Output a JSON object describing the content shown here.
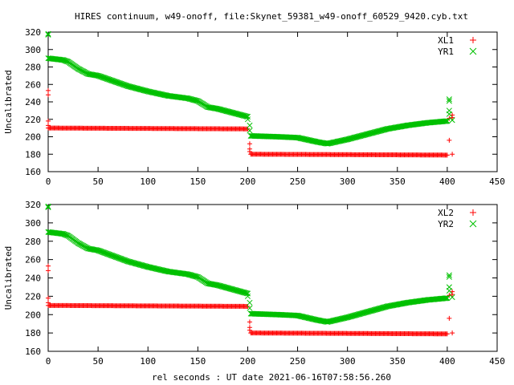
{
  "title": "HIRES continuum, w49-onoff, file:Skynet_59381_w49-onoff_60529_9420.cyb.txt",
  "xlabel": "rel seconds : UT date 2021-06-16T07:58:56.260",
  "colors": {
    "red_series": "#ff0000",
    "green_series": "#00c000"
  },
  "chart_data": [
    {
      "type": "scatter",
      "title": "HIRES continuum, w49-onoff, file:Skynet_59381_w49-onoff_60529_9420.cyb.txt",
      "xlabel": "",
      "ylabel": "Uncalibrated",
      "xlim": [
        0,
        450
      ],
      "ylim": [
        160,
        320
      ],
      "xticks": [
        0,
        50,
        100,
        150,
        200,
        250,
        300,
        350,
        400,
        450
      ],
      "yticks": [
        160,
        180,
        200,
        220,
        240,
        260,
        280,
        300,
        320
      ],
      "grid": false,
      "legend": "top-right",
      "series": [
        {
          "name": "XL1",
          "marker": "plus",
          "color": "#ff0000",
          "segments": [
            {
              "x_start": 0,
              "x_end": 200,
              "y_points": [
                [
                  0,
                  210
                ],
                [
                  200,
                  209
                ]
              ]
            },
            {
              "x_start": 203,
              "x_end": 400,
              "y_points": [
                [
                  203,
                  180
                ],
                [
                  400,
                  179
                ]
              ]
            }
          ],
          "extra_points": [
            [
              0,
              253
            ],
            [
              0,
              248
            ],
            [
              0,
              218
            ],
            [
              0,
              213
            ],
            [
              202,
              192
            ],
            [
              202,
              186
            ],
            [
              202,
              183
            ],
            [
              402,
              221
            ],
            [
              402,
              196
            ],
            [
              405,
              180
            ],
            [
              405,
              225
            ],
            [
              405,
              222
            ]
          ]
        },
        {
          "name": "YR1",
          "marker": "x",
          "color": "#00c000",
          "segments": [
            {
              "x_start": 0,
              "x_end": 200,
              "y_points": [
                [
                  0,
                  290
                ],
                [
                  15,
                  288
                ],
                [
                  20,
                  286
                ],
                [
                  30,
                  278
                ],
                [
                  40,
                  272
                ],
                [
                  50,
                  270
                ],
                [
                  60,
                  266
                ],
                [
                  80,
                  258
                ],
                [
                  100,
                  252
                ],
                [
                  120,
                  247
                ],
                [
                  140,
                  244
                ],
                [
                  150,
                  241
                ],
                [
                  160,
                  234
                ],
                [
                  170,
                  232
                ],
                [
                  180,
                  229
                ],
                [
                  200,
                  223
                ]
              ]
            },
            {
              "x_start": 203,
              "x_end": 400,
              "y_points": [
                [
                  203,
                  201
                ],
                [
                  230,
                  200
                ],
                [
                  250,
                  199
                ],
                [
                  270,
                  194
                ],
                [
                  280,
                  192
                ],
                [
                  300,
                  197
                ],
                [
                  320,
                  203
                ],
                [
                  340,
                  209
                ],
                [
                  360,
                  213
                ],
                [
                  380,
                  216
                ],
                [
                  400,
                  218
                ]
              ]
            }
          ],
          "extra_points": [
            [
              0,
              318
            ],
            [
              0,
              317
            ],
            [
              200,
              220
            ],
            [
              202,
              213
            ],
            [
              202,
              207
            ],
            [
              402,
              243
            ],
            [
              402,
              241
            ],
            [
              402,
              230
            ],
            [
              402,
              226
            ],
            [
              405,
              219
            ]
          ]
        }
      ]
    },
    {
      "type": "scatter",
      "title": "",
      "xlabel": "rel seconds : UT date 2021-06-16T07:58:56.260",
      "ylabel": "Uncalibrated",
      "xlim": [
        0,
        450
      ],
      "ylim": [
        160,
        320
      ],
      "xticks": [
        0,
        50,
        100,
        150,
        200,
        250,
        300,
        350,
        400,
        450
      ],
      "yticks": [
        160,
        180,
        200,
        220,
        240,
        260,
        280,
        300,
        320
      ],
      "grid": false,
      "legend": "top-right",
      "series": [
        {
          "name": "XL2",
          "marker": "plus",
          "color": "#ff0000",
          "segments": [
            {
              "x_start": 0,
              "x_end": 200,
              "y_points": [
                [
                  0,
                  210
                ],
                [
                  200,
                  209
                ]
              ]
            },
            {
              "x_start": 203,
              "x_end": 400,
              "y_points": [
                [
                  203,
                  180
                ],
                [
                  400,
                  179
                ]
              ]
            }
          ],
          "extra_points": [
            [
              0,
              253
            ],
            [
              0,
              248
            ],
            [
              0,
              218
            ],
            [
              0,
              213
            ],
            [
              202,
              192
            ],
            [
              202,
              186
            ],
            [
              202,
              183
            ],
            [
              402,
              221
            ],
            [
              402,
              196
            ],
            [
              405,
              180
            ],
            [
              405,
              225
            ],
            [
              405,
              222
            ]
          ]
        },
        {
          "name": "YR2",
          "marker": "x",
          "color": "#00c000",
          "segments": [
            {
              "x_start": 0,
              "x_end": 200,
              "y_points": [
                [
                  0,
                  290
                ],
                [
                  15,
                  288
                ],
                [
                  20,
                  286
                ],
                [
                  30,
                  278
                ],
                [
                  40,
                  272
                ],
                [
                  50,
                  270
                ],
                [
                  60,
                  266
                ],
                [
                  80,
                  258
                ],
                [
                  100,
                  252
                ],
                [
                  120,
                  247
                ],
                [
                  140,
                  244
                ],
                [
                  150,
                  241
                ],
                [
                  160,
                  234
                ],
                [
                  170,
                  232
                ],
                [
                  180,
                  229
                ],
                [
                  200,
                  223
                ]
              ]
            },
            {
              "x_start": 203,
              "x_end": 400,
              "y_points": [
                [
                  203,
                  201
                ],
                [
                  230,
                  200
                ],
                [
                  250,
                  199
                ],
                [
                  270,
                  194
                ],
                [
                  280,
                  192
                ],
                [
                  300,
                  197
                ],
                [
                  320,
                  203
                ],
                [
                  340,
                  209
                ],
                [
                  360,
                  213
                ],
                [
                  380,
                  216
                ],
                [
                  400,
                  218
                ]
              ]
            }
          ],
          "extra_points": [
            [
              0,
              318
            ],
            [
              0,
              317
            ],
            [
              200,
              220
            ],
            [
              202,
              213
            ],
            [
              202,
              207
            ],
            [
              402,
              243
            ],
            [
              402,
              241
            ],
            [
              402,
              230
            ],
            [
              402,
              226
            ],
            [
              405,
              219
            ]
          ]
        }
      ]
    }
  ]
}
